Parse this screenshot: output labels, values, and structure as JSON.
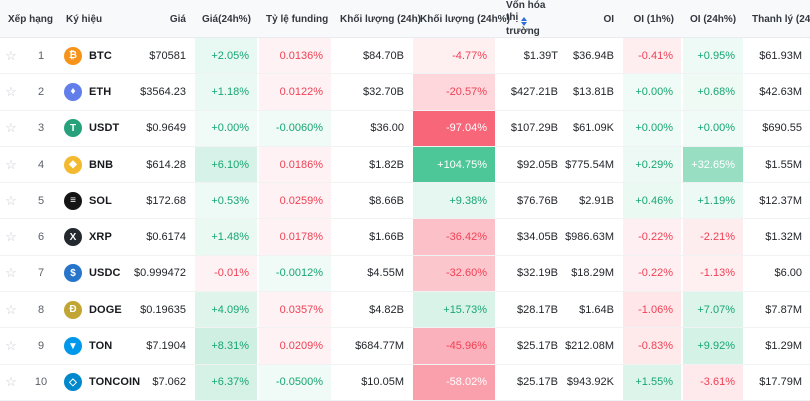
{
  "colors": {
    "up": "#2ebd85",
    "down": "#f6465d",
    "up_text": "#17a673",
    "down_text": "#ef4155",
    "header_bg": "#f8f9fb",
    "sort_icon": "#2d6cdf",
    "white_text": "#ffffff"
  },
  "header": {
    "columns": [
      {
        "key": "rank",
        "label": "Xếp hạng"
      },
      {
        "key": "symbol",
        "label": "Ký hiệu"
      },
      {
        "key": "price",
        "label": "Giá"
      },
      {
        "key": "chg24h",
        "label": "Giá(24h%)"
      },
      {
        "key": "funding",
        "label": "Tỷ lệ funding"
      },
      {
        "key": "vol24h",
        "label": "Khối lượng (24h)"
      },
      {
        "key": "vol24hPct",
        "label": "Khối lượng (24h%)"
      },
      {
        "key": "mcap",
        "label": "Vốn hóa thị trường",
        "label_lines": [
          "Vốn hóa thị",
          "trường"
        ],
        "sort": true
      },
      {
        "key": "oi",
        "label": "OI"
      },
      {
        "key": "oi1h",
        "label": "OI (1h%)"
      },
      {
        "key": "oi24h",
        "label": "OI (24h%)"
      },
      {
        "key": "liq24h",
        "label": "Thanh lý (24h)"
      }
    ]
  },
  "rows": [
    {
      "rank": "1",
      "symbol": "BTC",
      "icon_name": "btc-coin-icon",
      "icon_bg": "#f7931a",
      "icon_glyph": "₿",
      "price": "$70581",
      "chg24h": "+2.05%",
      "funding": "0.0136%",
      "vol24h": "$84.70B",
      "vol24hPct": "-4.77%",
      "mcap": "$1.39T",
      "oi": "$36.94B",
      "oi1h": "-0.41%",
      "oi24h": "+0.95%",
      "liq24h": "$61.93M"
    },
    {
      "rank": "2",
      "symbol": "ETH",
      "icon_name": "eth-coin-icon",
      "icon_bg": "#627eea",
      "icon_glyph": "♦",
      "price": "$3564.23",
      "chg24h": "+1.18%",
      "funding": "0.0122%",
      "vol24h": "$32.70B",
      "vol24hPct": "-20.57%",
      "mcap": "$427.21B",
      "oi": "$13.81B",
      "oi1h": "+0.00%",
      "oi24h": "+0.68%",
      "liq24h": "$42.63M"
    },
    {
      "rank": "3",
      "symbol": "USDT",
      "icon_name": "usdt-coin-icon",
      "icon_bg": "#26a17b",
      "icon_glyph": "T",
      "price": "$0.9649",
      "chg24h": "+0.00%",
      "funding": "-0.0060%",
      "vol24h": "$36.00",
      "vol24hPct": "-97.04%",
      "mcap": "$107.29B",
      "oi": "$61.09K",
      "oi1h": "+0.00%",
      "oi24h": "+0.00%",
      "liq24h": "$690.55"
    },
    {
      "rank": "4",
      "symbol": "BNB",
      "icon_name": "bnb-coin-icon",
      "icon_bg": "#f3ba2f",
      "icon_glyph": "◆",
      "price": "$614.28",
      "chg24h": "+6.10%",
      "funding": "0.0186%",
      "vol24h": "$1.82B",
      "vol24hPct": "+104.75%",
      "mcap": "$92.05B",
      "oi": "$775.54M",
      "oi1h": "+0.29%",
      "oi24h": "+32.65%",
      "liq24h": "$1.55M"
    },
    {
      "rank": "5",
      "symbol": "SOL",
      "icon_name": "sol-coin-icon",
      "icon_bg": "#141414",
      "icon_glyph": "≡",
      "price": "$172.68",
      "chg24h": "+0.53%",
      "funding": "0.0259%",
      "vol24h": "$8.66B",
      "vol24hPct": "+9.38%",
      "mcap": "$76.76B",
      "oi": "$2.91B",
      "oi1h": "+0.46%",
      "oi24h": "+1.19%",
      "liq24h": "$12.37M"
    },
    {
      "rank": "6",
      "symbol": "XRP",
      "icon_name": "xrp-coin-icon",
      "icon_bg": "#23292f",
      "icon_glyph": "X",
      "price": "$0.6174",
      "chg24h": "+1.48%",
      "funding": "0.0178%",
      "vol24h": "$1.66B",
      "vol24hPct": "-36.42%",
      "mcap": "$34.05B",
      "oi": "$986.63M",
      "oi1h": "-0.22%",
      "oi24h": "-2.21%",
      "liq24h": "$1.32M"
    },
    {
      "rank": "7",
      "symbol": "USDC",
      "icon_name": "usdc-coin-icon",
      "icon_bg": "#2775ca",
      "icon_glyph": "$",
      "price": "$0.999472",
      "chg24h": "-0.01%",
      "funding": "-0.0012%",
      "vol24h": "$4.55M",
      "vol24hPct": "-32.60%",
      "mcap": "$32.19B",
      "oi": "$18.29M",
      "oi1h": "-0.22%",
      "oi24h": "-1.13%",
      "liq24h": "$6.00"
    },
    {
      "rank": "8",
      "symbol": "DOGE",
      "icon_name": "doge-coin-icon",
      "icon_bg": "#c2a633",
      "icon_glyph": "Ð",
      "price": "$0.19635",
      "chg24h": "+4.09%",
      "funding": "0.0357%",
      "vol24h": "$4.82B",
      "vol24hPct": "+15.73%",
      "mcap": "$28.17B",
      "oi": "$1.64B",
      "oi1h": "-1.06%",
      "oi24h": "+7.07%",
      "liq24h": "$7.87M"
    },
    {
      "rank": "9",
      "symbol": "TON",
      "icon_name": "ton-coin-icon",
      "icon_bg": "#0098ea",
      "icon_glyph": "▼",
      "price": "$7.1904",
      "chg24h": "+8.31%",
      "funding": "0.0209%",
      "vol24h": "$684.77M",
      "vol24hPct": "-45.96%",
      "mcap": "$25.17B",
      "oi": "$212.08M",
      "oi1h": "-0.83%",
      "oi24h": "+9.92%",
      "liq24h": "$1.29M"
    },
    {
      "rank": "10",
      "symbol": "TONCOIN",
      "icon_name": "toncoin-coin-icon",
      "icon_bg": "#0088cc",
      "icon_glyph": "◇",
      "price": "$7.062",
      "chg24h": "+6.37%",
      "funding": "-0.0500%",
      "vol24h": "$10.05M",
      "vol24hPct": "-58.02%",
      "mcap": "$25.17B",
      "oi": "$943.92K",
      "oi1h": "+1.55%",
      "oi24h": "-3.61%",
      "liq24h": "$17.79M"
    }
  ],
  "icons": {
    "favorite_star": "☆"
  }
}
